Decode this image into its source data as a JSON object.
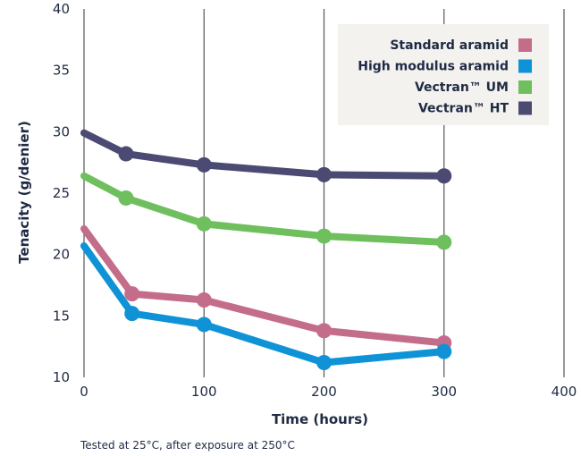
{
  "chart_data": {
    "type": "line",
    "xlabel": "Time (hours)",
    "ylabel": "Tenacity (g/denier)",
    "xlim": [
      0,
      400
    ],
    "ylim": [
      10,
      40
    ],
    "x_ticks": [
      "0",
      "100",
      "200",
      "300",
      "400"
    ],
    "y_ticks": [
      "10",
      "15",
      "20",
      "25",
      "30",
      "35",
      "40"
    ],
    "grid": "vertical",
    "legend_position": "top-right",
    "footnote": "Tested at 25°C, after exposure at 250°C",
    "series": [
      {
        "name": "Standard aramid",
        "color": "#c46d8b",
        "x": [
          0,
          40,
          100,
          200,
          300
        ],
        "y": [
          22.1,
          16.8,
          16.3,
          13.8,
          12.8
        ],
        "markers": [
          false,
          true,
          true,
          true,
          true
        ]
      },
      {
        "name": "High modulus aramid",
        "color": "#0f93d6",
        "x": [
          0,
          40,
          100,
          200,
          300
        ],
        "y": [
          20.7,
          15.2,
          14.3,
          11.2,
          12.1
        ],
        "markers": [
          false,
          true,
          true,
          true,
          true
        ]
      },
      {
        "name": "Vectran™ UM",
        "color": "#6fbf5f",
        "x": [
          0,
          35,
          100,
          200,
          300
        ],
        "y": [
          26.4,
          24.6,
          22.5,
          21.5,
          21.0
        ],
        "markers": [
          false,
          true,
          true,
          true,
          true
        ]
      },
      {
        "name": "Vectran™ HT",
        "color": "#4a4a72",
        "x": [
          0,
          35,
          100,
          200,
          300
        ],
        "y": [
          29.9,
          28.2,
          27.3,
          26.5,
          26.4
        ],
        "markers": [
          false,
          true,
          true,
          true,
          true
        ]
      }
    ],
    "legend_bg": "#f3f2ef"
  }
}
